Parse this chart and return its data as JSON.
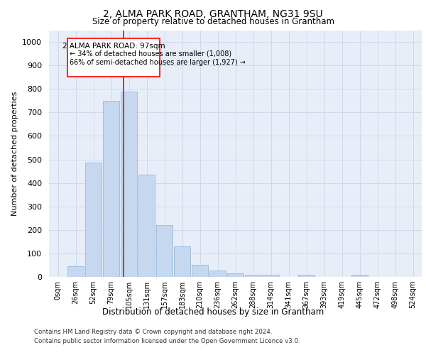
{
  "title": "2, ALMA PARK ROAD, GRANTHAM, NG31 9SU",
  "subtitle": "Size of property relative to detached houses in Grantham",
  "xlabel": "Distribution of detached houses by size in Grantham",
  "ylabel": "Number of detached properties",
  "bar_color": "#c5d8f0",
  "bar_edge_color": "#8ab4d8",
  "categories": [
    "0sqm",
    "26sqm",
    "52sqm",
    "79sqm",
    "105sqm",
    "131sqm",
    "157sqm",
    "183sqm",
    "210sqm",
    "236sqm",
    "262sqm",
    "288sqm",
    "314sqm",
    "341sqm",
    "367sqm",
    "393sqm",
    "419sqm",
    "445sqm",
    "472sqm",
    "498sqm",
    "524sqm"
  ],
  "values": [
    0,
    45,
    485,
    750,
    790,
    435,
    220,
    130,
    50,
    28,
    15,
    10,
    10,
    0,
    8,
    0,
    0,
    10,
    0,
    0,
    0
  ],
  "ylim": [
    0,
    1050
  ],
  "yticks": [
    0,
    100,
    200,
    300,
    400,
    500,
    600,
    700,
    800,
    900,
    1000
  ],
  "marker_label": "2 ALMA PARK ROAD: 97sqm",
  "annotation_line1": "← 34% of detached houses are smaller (1,008)",
  "annotation_line2": "66% of semi-detached houses are larger (1,927) →",
  "grid_color": "#d0d8ec",
  "background_color": "#e8eef8",
  "footer1": "Contains HM Land Registry data © Crown copyright and database right 2024.",
  "footer2": "Contains public sector information licensed under the Open Government Licence v3.0."
}
